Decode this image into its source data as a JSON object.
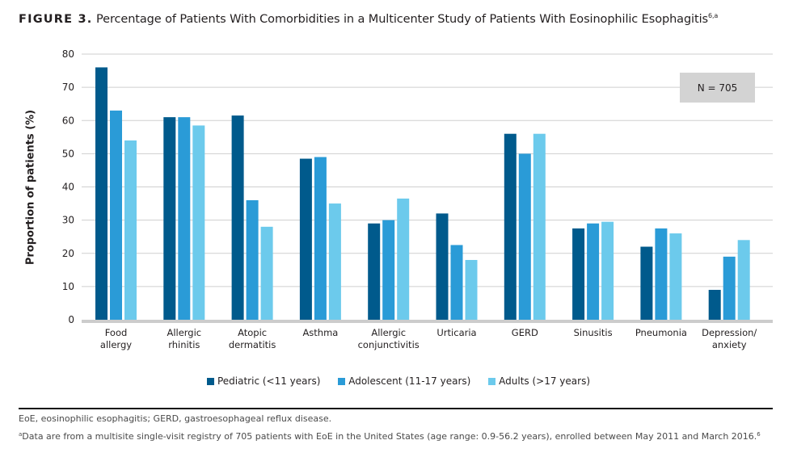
{
  "title": {
    "figure_label": "FIGURE 3.",
    "text": "Percentage of Patients With Comorbidities in a Multicenter Study of Patients With Eosinophilic Esophagitis",
    "superscript": "6,a"
  },
  "annotation": "N = 705",
  "footnotes": {
    "abbreviations": "EoE, eosinophilic esophagitis; GERD, gastroesophageal reflux disease.",
    "note_marker": "a",
    "note": "Data are from a multisite single-visit registry of 705 patients with EoE in the United States (age range: 0.9-56.2 years), enrolled between May 2011 and March 2016.",
    "note_superscript": "6"
  },
  "chart_data": {
    "type": "bar",
    "title": "Percentage of Patients With Comorbidities in a Multicenter Study of Patients With Eosinophilic Esophagitis",
    "xlabel": "",
    "ylabel": "Proportion of patients (%)",
    "ylim": [
      0,
      80
    ],
    "yticks": [
      0,
      10,
      20,
      30,
      40,
      50,
      60,
      70,
      80
    ],
    "grid": true,
    "legend_position": "bottom",
    "categories": [
      [
        "Food",
        "allergy"
      ],
      [
        "Allergic",
        "rhinitis"
      ],
      [
        "Atopic",
        "dermatitis"
      ],
      [
        "Asthma"
      ],
      [
        "Allergic",
        "conjunctivitis"
      ],
      [
        "Urticaria"
      ],
      [
        "GERD"
      ],
      [
        "Sinusitis"
      ],
      [
        "Pneumonia"
      ],
      [
        "Depression/",
        "anxiety"
      ]
    ],
    "series": [
      {
        "name": "Pediatric (<11 years)",
        "color": "#005a8c",
        "values": [
          76,
          61,
          61.5,
          48.5,
          29,
          32,
          56,
          27.5,
          22,
          9
        ]
      },
      {
        "name": "Adolescent (11-17 years)",
        "color": "#2a9bd7",
        "values": [
          63,
          61,
          36,
          49,
          30,
          22.5,
          50,
          29,
          27.5,
          19
        ]
      },
      {
        "name": "Adults (>17 years)",
        "color": "#6ccaec",
        "values": [
          54,
          58.5,
          28,
          35,
          36.5,
          18,
          56,
          29.5,
          26,
          24
        ]
      }
    ],
    "annotation": "N = 705"
  }
}
